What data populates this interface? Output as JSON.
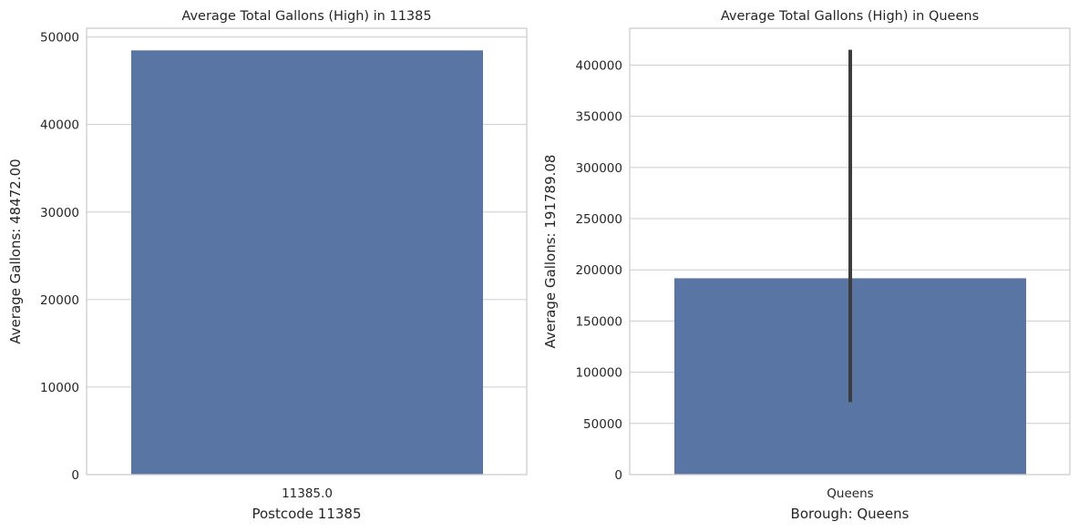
{
  "chart_data": [
    {
      "type": "bar",
      "title": "Average Total Gallons (High) in 11385",
      "xlabel": "Postcode 11385",
      "ylabel": "Average Gallons: 48472.00",
      "categories": [
        "11385.0"
      ],
      "values": [
        48472.0
      ],
      "ylim": [
        0,
        51000
      ],
      "yticks": [
        0,
        10000,
        20000,
        30000,
        40000,
        50000
      ],
      "ytick_labels": [
        "0",
        "10000",
        "20000",
        "30000",
        "40000",
        "50000"
      ],
      "grid": "y",
      "color": "#5975a4"
    },
    {
      "type": "bar",
      "title": "Average Total Gallons (High) in Queens",
      "xlabel": "Borough: Queens",
      "ylabel": "Average Gallons: 191789.08",
      "categories": [
        "Queens"
      ],
      "values": [
        191789.08
      ],
      "error_bars": [
        [
          71000,
          415000
        ]
      ],
      "ylim": [
        0,
        436000
      ],
      "yticks": [
        0,
        50000,
        100000,
        150000,
        200000,
        250000,
        300000,
        350000,
        400000
      ],
      "ytick_labels": [
        "0",
        "50000",
        "100000",
        "150000",
        "200000",
        "250000",
        "300000",
        "350000",
        "400000"
      ],
      "grid": "y",
      "color": "#5975a4"
    }
  ]
}
